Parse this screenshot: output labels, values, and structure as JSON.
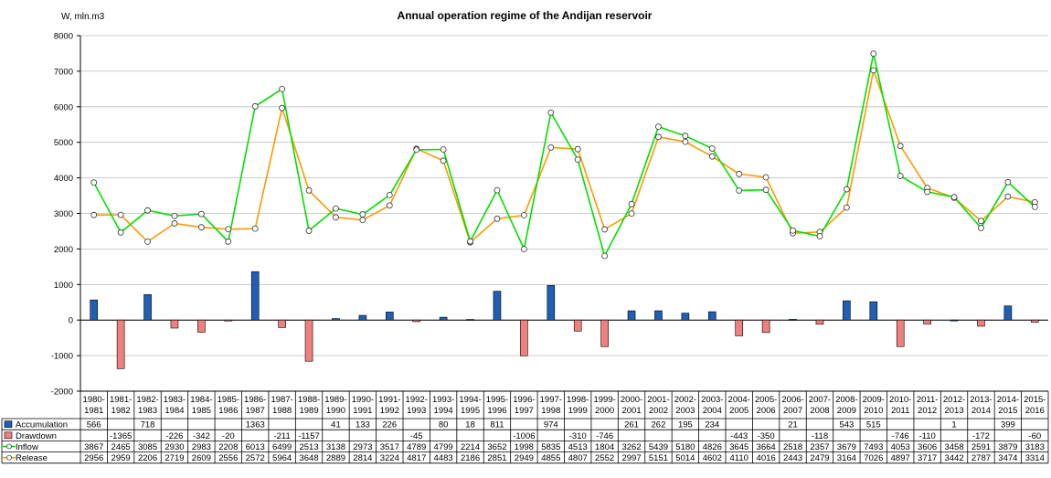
{
  "chart_data": {
    "type": "bar+line",
    "title": "Annual operation regime of the Andijan reservoir",
    "ylabel": "W, mln.m3",
    "ylim": [
      -2000,
      8000
    ],
    "yticks": [
      -2000,
      -1000,
      0,
      1000,
      2000,
      3000,
      4000,
      5000,
      6000,
      7000,
      8000
    ],
    "categories": [
      [
        "1980-",
        "1981"
      ],
      [
        "1981-",
        "1982"
      ],
      [
        "1982-",
        "1983"
      ],
      [
        "1983-",
        "1984"
      ],
      [
        "1984-",
        "1985"
      ],
      [
        "1985-",
        "1986"
      ],
      [
        "1986-",
        "1987"
      ],
      [
        "1987-",
        "1988"
      ],
      [
        "1988-",
        "1989"
      ],
      [
        "1989-",
        "1990"
      ],
      [
        "1990-",
        "1991"
      ],
      [
        "1991-",
        "1992"
      ],
      [
        "1992-",
        "1993"
      ],
      [
        "1993-",
        "1994"
      ],
      [
        "1994-",
        "1995"
      ],
      [
        "1995-",
        "1996"
      ],
      [
        "1996-",
        "1997"
      ],
      [
        "1997-",
        "1998"
      ],
      [
        "1998-",
        "1999"
      ],
      [
        "1999-",
        "2000"
      ],
      [
        "2000-",
        "2001"
      ],
      [
        "2001-",
        "2002"
      ],
      [
        "2002-",
        "2003"
      ],
      [
        "2003-",
        "2004"
      ],
      [
        "2004-",
        "2005"
      ],
      [
        "2005-",
        "2006"
      ],
      [
        "2006-",
        "2007"
      ],
      [
        "2007-",
        "2008"
      ],
      [
        "2008-",
        "2009"
      ],
      [
        "2009-",
        "2010"
      ],
      [
        "2010-",
        "2011"
      ],
      [
        "2011-",
        "2012"
      ],
      [
        "2012-",
        "2013"
      ],
      [
        "2013-",
        "2014"
      ],
      [
        "2014-",
        "2015"
      ],
      [
        "2015-",
        "2016"
      ]
    ],
    "series": [
      {
        "name": "Accumulation",
        "kind": "bar",
        "color": "#1f5fb4",
        "values": [
          566,
          null,
          718,
          null,
          null,
          null,
          1363,
          null,
          null,
          41,
          133,
          226,
          null,
          80,
          18,
          811,
          null,
          974,
          null,
          null,
          261,
          262,
          195,
          234,
          null,
          null,
          21,
          null,
          543,
          515,
          null,
          null,
          1,
          null,
          399,
          null
        ]
      },
      {
        "name": "Drawdown",
        "kind": "bar",
        "color": "#f08080",
        "values": [
          null,
          -1365,
          null,
          -226,
          -342,
          -20,
          null,
          -211,
          -1157,
          null,
          null,
          null,
          -45,
          null,
          null,
          null,
          -1006,
          null,
          -310,
          -746,
          null,
          null,
          null,
          null,
          -443,
          -350,
          null,
          -118,
          null,
          null,
          -746,
          -110,
          null,
          -172,
          null,
          -60
        ]
      },
      {
        "name": "Inflow",
        "kind": "line",
        "color": "#00e000",
        "values": [
          3867,
          2465,
          3085,
          2930,
          2983,
          2208,
          6013,
          6499,
          2513,
          3138,
          2973,
          3517,
          4789,
          4799,
          2214,
          3652,
          1998,
          5835,
          4513,
          1804,
          3262,
          5439,
          5180,
          4826,
          3645,
          3664,
          2518,
          2357,
          3679,
          7493,
          4053,
          3606,
          3458,
          2591,
          3879,
          3183
        ]
      },
      {
        "name": "Release",
        "kind": "line",
        "color": "#ff9900",
        "values": [
          2956,
          2959,
          2206,
          2719,
          2609,
          2556,
          2572,
          5964,
          3648,
          2889,
          2814,
          3224,
          4817,
          4483,
          2186,
          2851,
          2949,
          4855,
          4807,
          2552,
          2997,
          5151,
          5014,
          4602,
          4110,
          4016,
          2443,
          2479,
          3164,
          7026,
          4897,
          3717,
          3442,
          2787,
          3474,
          3314
        ]
      }
    ],
    "legend": "table-left"
  }
}
